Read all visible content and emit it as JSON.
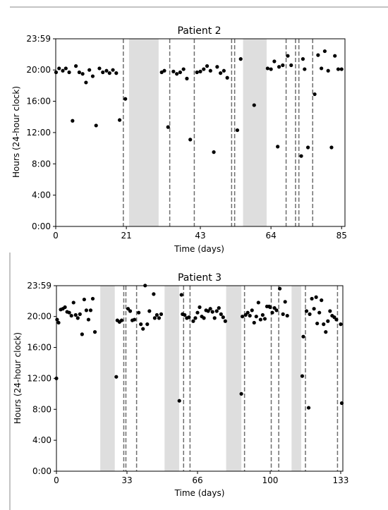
{
  "chart_data": [
    {
      "type": "scatter",
      "title": "Patient 2",
      "xlabel": "Time (days)",
      "ylabel": "Hours (24-hour clock)",
      "xlim": [
        0,
        86
      ],
      "ylim": [
        0,
        23.983
      ],
      "xticks": [
        0,
        21,
        43,
        64,
        85
      ],
      "xtick_labels": [
        "0",
        "21",
        "43",
        "64",
        "85"
      ],
      "yticks": [
        0,
        4,
        8,
        12,
        16,
        20,
        23.983
      ],
      "ytick_labels": [
        "0:00",
        "4:00",
        "8:00",
        "12:00",
        "16:00",
        "20:00",
        "23:59"
      ],
      "shaded_spans": [
        [
          21.8,
          30.6
        ],
        [
          55.7,
          62.7
        ]
      ],
      "dashed_lines": [
        20.1,
        33.9,
        41.2,
        52.3,
        53.2,
        68.5,
        71.3,
        72.3,
        76.4
      ],
      "points": [
        [
          0.1,
          19.7
        ],
        [
          1.0,
          20.2
        ],
        [
          2.1,
          19.9
        ],
        [
          3.0,
          20.2
        ],
        [
          4.0,
          19.7
        ],
        [
          5.0,
          13.5
        ],
        [
          6.0,
          20.5
        ],
        [
          7.0,
          19.7
        ],
        [
          8.0,
          19.5
        ],
        [
          9.0,
          18.4
        ],
        [
          10.0,
          20.0
        ],
        [
          11.0,
          19.2
        ],
        [
          12.0,
          12.9
        ],
        [
          13.0,
          20.2
        ],
        [
          14.0,
          19.7
        ],
        [
          15.1,
          19.9
        ],
        [
          16.0,
          19.6
        ],
        [
          17.0,
          20.0
        ],
        [
          18.0,
          19.6
        ],
        [
          19.0,
          13.6
        ],
        [
          20.7,
          16.3
        ],
        [
          31.5,
          19.7
        ],
        [
          32.3,
          19.9
        ],
        [
          33.4,
          12.7
        ],
        [
          35.0,
          19.8
        ],
        [
          36.0,
          19.5
        ],
        [
          37.0,
          19.7
        ],
        [
          38.0,
          20.1
        ],
        [
          39.0,
          18.9
        ],
        [
          40.0,
          11.1
        ],
        [
          42.0,
          19.7
        ],
        [
          43.0,
          19.8
        ],
        [
          44.0,
          20.1
        ],
        [
          45.0,
          20.5
        ],
        [
          46.0,
          19.9
        ],
        [
          47.0,
          9.5
        ],
        [
          48.0,
          20.4
        ],
        [
          49.0,
          19.6
        ],
        [
          50.0,
          19.9
        ],
        [
          51.0,
          19.0
        ],
        [
          54.0,
          12.3
        ],
        [
          55.0,
          21.4
        ],
        [
          59.0,
          15.5
        ],
        [
          63.0,
          20.2
        ],
        [
          64.0,
          20.1
        ],
        [
          65.0,
          21.1
        ],
        [
          66.0,
          10.2
        ],
        [
          66.4,
          20.4
        ],
        [
          67.5,
          20.6
        ],
        [
          69.0,
          21.8
        ],
        [
          70.0,
          20.6
        ],
        [
          73.0,
          9.0
        ],
        [
          73.5,
          21.4
        ],
        [
          74.0,
          20.1
        ],
        [
          75.0,
          10.1
        ],
        [
          77.0,
          16.9
        ],
        [
          78.0,
          21.9
        ],
        [
          79.0,
          20.2
        ],
        [
          80.0,
          22.4
        ],
        [
          81.0,
          19.9
        ],
        [
          82.0,
          10.1
        ],
        [
          83.0,
          21.8
        ],
        [
          84.0,
          20.1
        ],
        [
          85.0,
          20.1
        ]
      ]
    },
    {
      "type": "scatter",
      "title": "Patient 3",
      "xlabel": "Time (days)",
      "ylabel": "Hours (24-hour clock)",
      "xlim": [
        0,
        134
      ],
      "ylim": [
        0,
        23.983
      ],
      "xticks": [
        0,
        33,
        66,
        100,
        133
      ],
      "xtick_labels": [
        "0",
        "33",
        "66",
        "100",
        "133"
      ],
      "yticks": [
        0,
        4,
        8,
        12,
        16,
        20,
        23.983
      ],
      "ytick_labels": [
        "0:00",
        "4:00",
        "8:00",
        "12:00",
        "16:00",
        "20:00",
        "23:59"
      ],
      "shaded_spans": [
        [
          20.5,
          27.3
        ],
        [
          50.6,
          57.4
        ],
        [
          79.4,
          86.5
        ],
        [
          110.0,
          114.5
        ]
      ],
      "dashed_lines": [
        31.5,
        32.5,
        37.5,
        59.5,
        62.5,
        88.0,
        100.5,
        104.0,
        116.5,
        131.5
      ],
      "points": [
        [
          0.0,
          12.0
        ],
        [
          0.3,
          19.6
        ],
        [
          1.0,
          19.2
        ],
        [
          2.0,
          20.9
        ],
        [
          3.0,
          21.0
        ],
        [
          4.0,
          21.2
        ],
        [
          5.0,
          20.6
        ],
        [
          6.0,
          20.5
        ],
        [
          7.0,
          20.1
        ],
        [
          8.0,
          21.8
        ],
        [
          9.0,
          20.2
        ],
        [
          10.0,
          19.8
        ],
        [
          11.0,
          20.3
        ],
        [
          12.0,
          17.7
        ],
        [
          13.0,
          22.2
        ],
        [
          14.0,
          20.8
        ],
        [
          15.0,
          19.6
        ],
        [
          16.0,
          20.8
        ],
        [
          17.0,
          22.3
        ],
        [
          18.0,
          18.0
        ],
        [
          28.0,
          12.2
        ],
        [
          28.5,
          19.5
        ],
        [
          29.5,
          19.3
        ],
        [
          30.5,
          19.5
        ],
        [
          33.5,
          21.0
        ],
        [
          34.5,
          20.7
        ],
        [
          35.5,
          19.5
        ],
        [
          36.5,
          19.6
        ],
        [
          38.5,
          20.5
        ],
        [
          39.5,
          19.0
        ],
        [
          40.5,
          18.4
        ],
        [
          41.5,
          24.0
        ],
        [
          42.5,
          19.0
        ],
        [
          43.5,
          20.7
        ],
        [
          45.5,
          22.9
        ],
        [
          46.0,
          19.8
        ],
        [
          47.0,
          20.2
        ],
        [
          48.0,
          19.8
        ],
        [
          49.0,
          20.3
        ],
        [
          57.5,
          9.1
        ],
        [
          58.5,
          22.8
        ],
        [
          59.0,
          20.3
        ],
        [
          60.0,
          20.2
        ],
        [
          61.0,
          19.8
        ],
        [
          62.0,
          19.9
        ],
        [
          64.0,
          19.4
        ],
        [
          65.0,
          19.8
        ],
        [
          66.0,
          20.5
        ],
        [
          67.0,
          21.2
        ],
        [
          68.0,
          20.0
        ],
        [
          69.0,
          19.8
        ],
        [
          70.0,
          20.8
        ],
        [
          71.0,
          20.7
        ],
        [
          72.0,
          21.0
        ],
        [
          73.0,
          20.6
        ],
        [
          74.0,
          19.8
        ],
        [
          75.0,
          20.7
        ],
        [
          76.0,
          21.1
        ],
        [
          77.0,
          20.3
        ],
        [
          78.0,
          19.9
        ],
        [
          79.0,
          19.4
        ],
        [
          86.5,
          10.0
        ],
        [
          87.0,
          20.0
        ],
        [
          88.5,
          20.2
        ],
        [
          89.5,
          20.5
        ],
        [
          90.5,
          20.1
        ],
        [
          91.5,
          20.8
        ],
        [
          92.5,
          19.2
        ],
        [
          93.5,
          20.0
        ],
        [
          94.5,
          21.8
        ],
        [
          95.5,
          19.6
        ],
        [
          96.5,
          20.2
        ],
        [
          97.5,
          19.7
        ],
        [
          98.5,
          21.3
        ],
        [
          99.5,
          21.3
        ],
        [
          100.0,
          21.2
        ],
        [
          101.0,
          20.5
        ],
        [
          102.0,
          21.1
        ],
        [
          103.0,
          20.8
        ],
        [
          104.5,
          23.6
        ],
        [
          106.0,
          20.3
        ],
        [
          107.0,
          21.9
        ],
        [
          108.0,
          20.1
        ],
        [
          115.0,
          12.3
        ],
        [
          115.5,
          17.4
        ],
        [
          117.0,
          20.7
        ],
        [
          118.0,
          8.2
        ],
        [
          118.5,
          20.3
        ],
        [
          119.5,
          22.3
        ],
        [
          120.5,
          21.0
        ],
        [
          121.5,
          22.5
        ],
        [
          122.0,
          19.1
        ],
        [
          123.0,
          20.5
        ],
        [
          124.0,
          22.1
        ],
        [
          125.0,
          19.0
        ],
        [
          126.0,
          18.0
        ],
        [
          127.0,
          19.4
        ],
        [
          128.0,
          20.7
        ],
        [
          129.0,
          20.1
        ],
        [
          130.0,
          19.9
        ],
        [
          131.0,
          19.6
        ],
        [
          133.0,
          19.0
        ],
        [
          133.5,
          8.8
        ]
      ]
    }
  ]
}
